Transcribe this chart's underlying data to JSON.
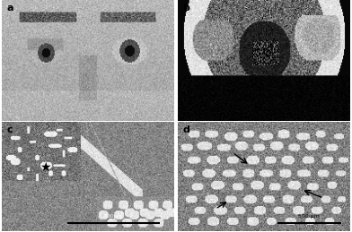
{
  "figure_width": 3.92,
  "figure_height": 2.59,
  "dpi": 100,
  "bg_color": "#ffffff",
  "panel_labels": [
    "a",
    "b",
    "c",
    "d"
  ],
  "label_color": "#000000",
  "label_fontsize": 8,
  "label_fontweight": "bold",
  "panel_a_color": "#aaaaaa",
  "panel_b_color": "#787878",
  "panel_c_color": "#888888",
  "panel_d_color": "#909090",
  "separator_color": "#cccccc",
  "separator_lw": 0.5,
  "scale_bar_color": "#000000",
  "scale_bar_lw": 1.5,
  "star_color": "#000000",
  "arrow_color": "#000000"
}
